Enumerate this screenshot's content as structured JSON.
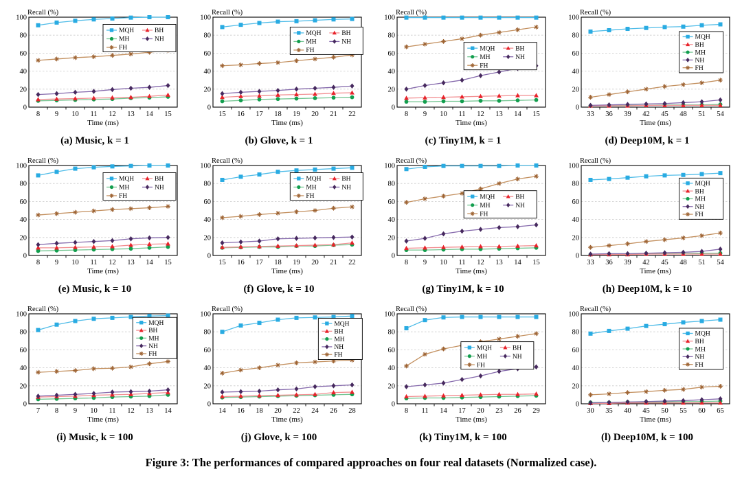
{
  "figure": {
    "caption": "Figure 3: The performances of compared approaches on four real datasets (Normalized case)."
  },
  "methods": [
    {
      "name": "MQH",
      "color": "#29abe2",
      "line": "#4fbce8",
      "marker": "square"
    },
    {
      "name": "BH",
      "color": "#e8232b",
      "line": "#f28e91",
      "marker": "triangle"
    },
    {
      "name": "MH",
      "color": "#129e4e",
      "line": "#74c592",
      "marker": "circle"
    },
    {
      "name": "NH",
      "color": "#46295e",
      "line": "#8468ab",
      "marker": "diamond"
    },
    {
      "name": "FH",
      "color": "#9e6434",
      "line": "#c3905f",
      "marker": "asterisk"
    }
  ],
  "chart_data": [
    {
      "id": "a",
      "caption": "(a) Music, k = 1",
      "type": "line",
      "xlabel": "Time (ms)",
      "ylabel": "Recall (%)",
      "x": [
        8,
        9,
        10,
        11,
        12,
        13,
        14,
        15
      ],
      "ylim": [
        0,
        100
      ],
      "yticks": [
        0,
        20,
        40,
        60,
        80,
        100
      ],
      "legend": {
        "cols": 2,
        "x": 0.5,
        "y": 0.08
      },
      "series": [
        {
          "name": "MQH",
          "values": [
            91,
            94,
            96,
            97.5,
            98.5,
            99.5,
            100,
            100
          ]
        },
        {
          "name": "BH",
          "values": [
            8.5,
            9,
            9.5,
            10,
            10.5,
            11,
            12,
            13.5
          ]
        },
        {
          "name": "MH",
          "values": [
            7,
            7.5,
            8,
            8.5,
            9,
            10,
            10.5,
            11.5
          ]
        },
        {
          "name": "NH",
          "values": [
            14,
            15,
            16.5,
            17.5,
            19.5,
            21,
            22,
            24
          ]
        },
        {
          "name": "FH",
          "values": [
            52,
            53.5,
            55,
            56,
            57.5,
            59,
            61,
            63
          ]
        }
      ]
    },
    {
      "id": "b",
      "caption": "(b) Glove, k = 1",
      "type": "line",
      "xlabel": "Time (ms)",
      "ylabel": "Recall (%)",
      "x": [
        15,
        16,
        17,
        18,
        19,
        20,
        21,
        22
      ],
      "ylim": [
        0,
        100
      ],
      "yticks": [
        0,
        20,
        40,
        60,
        80,
        100
      ],
      "legend": {
        "cols": 2,
        "x": 0.52,
        "y": 0.11
      },
      "series": [
        {
          "name": "MQH",
          "values": [
            89,
            91.5,
            93.5,
            95,
            95.5,
            96.5,
            97.5,
            98
          ]
        },
        {
          "name": "BH",
          "values": [
            11,
            12,
            12.5,
            13.5,
            14,
            14.5,
            15.5,
            16
          ]
        },
        {
          "name": "MH",
          "values": [
            6.5,
            7.5,
            8.5,
            9,
            9.5,
            10,
            10.5,
            11
          ]
        },
        {
          "name": "NH",
          "values": [
            15,
            16.5,
            17.5,
            18.5,
            20,
            21,
            22,
            23.5
          ]
        },
        {
          "name": "FH",
          "values": [
            46,
            47,
            48.5,
            49.5,
            51.5,
            53.5,
            55.5,
            58
          ]
        }
      ]
    },
    {
      "id": "c",
      "caption": "(c) Tiny1M, k = 1",
      "type": "line",
      "xlabel": "Time (ms)",
      "ylabel": "Recall (%)",
      "x": [
        8,
        9,
        10,
        11,
        12,
        13,
        14,
        15
      ],
      "ylim": [
        0,
        100
      ],
      "yticks": [
        0,
        20,
        40,
        60,
        80,
        100
      ],
      "legend": {
        "cols": 2,
        "x": 0.45,
        "y": 0.28
      },
      "series": [
        {
          "name": "MQH",
          "values": [
            99.5,
            99.5,
            99.5,
            99.5,
            99.5,
            99.5,
            99.5,
            99.5
          ]
        },
        {
          "name": "BH",
          "values": [
            10,
            10.5,
            11,
            11.5,
            12,
            12.5,
            13,
            13
          ]
        },
        {
          "name": "MH",
          "values": [
            6,
            6,
            6.5,
            6.5,
            7,
            7,
            7.5,
            8
          ]
        },
        {
          "name": "NH",
          "values": [
            20,
            24,
            27,
            30,
            35,
            39,
            43,
            46
          ]
        },
        {
          "name": "FH",
          "values": [
            67,
            70,
            73,
            76,
            80,
            83,
            86,
            89
          ]
        }
      ]
    },
    {
      "id": "d",
      "caption": "(d) Deep10M, k = 1",
      "type": "line",
      "xlabel": "Time (ms)",
      "ylabel": "Recall (%)",
      "x": [
        33,
        36,
        39,
        42,
        45,
        48,
        51,
        54
      ],
      "ylim": [
        0,
        100
      ],
      "yticks": [
        0,
        20,
        40,
        60,
        80,
        100
      ],
      "legend": {
        "cols": 1,
        "x": 0.66,
        "y": 0.16
      },
      "series": [
        {
          "name": "MQH",
          "values": [
            84,
            85.5,
            87,
            88,
            89,
            89.5,
            91,
            92
          ]
        },
        {
          "name": "BH",
          "values": [
            1.5,
            1.5,
            1.5,
            2,
            2,
            2,
            2,
            2
          ]
        },
        {
          "name": "MH",
          "values": [
            1.5,
            2,
            2,
            2,
            2.5,
            2.5,
            2.5,
            3
          ]
        },
        {
          "name": "NH",
          "values": [
            2,
            2.5,
            3,
            3.5,
            4,
            5,
            6,
            8
          ]
        },
        {
          "name": "FH",
          "values": [
            11,
            14,
            17,
            20,
            23,
            25,
            27,
            30
          ]
        }
      ]
    },
    {
      "id": "e",
      "caption": "(e) Music, k = 10",
      "type": "line",
      "xlabel": "Time (ms)",
      "ylabel": "Recall (%)",
      "x": [
        8,
        9,
        10,
        11,
        12,
        13,
        14,
        15
      ],
      "ylim": [
        0,
        100
      ],
      "yticks": [
        0,
        20,
        40,
        60,
        80,
        100
      ],
      "legend": {
        "cols": 2,
        "x": 0.5,
        "y": 0.08
      },
      "series": [
        {
          "name": "MQH",
          "values": [
            89,
            93,
            96.5,
            98,
            99,
            99.5,
            100,
            100
          ]
        },
        {
          "name": "BH",
          "values": [
            8.5,
            8.5,
            9,
            9.5,
            10,
            11.5,
            12.5,
            13
          ]
        },
        {
          "name": "MH",
          "values": [
            5,
            5.5,
            6,
            6.5,
            7,
            7.5,
            8.5,
            9.5
          ]
        },
        {
          "name": "NH",
          "values": [
            12,
            13.5,
            14.5,
            15.5,
            16.5,
            18.5,
            19.5,
            20
          ]
        },
        {
          "name": "FH",
          "values": [
            45,
            46.5,
            48,
            49.5,
            51,
            52,
            53,
            54.5
          ]
        }
      ]
    },
    {
      "id": "f",
      "caption": "(f) Glove, k = 10",
      "type": "line",
      "xlabel": "Time (ms)",
      "ylabel": "Recall (%)",
      "x": [
        15,
        16,
        17,
        18,
        19,
        20,
        21,
        22
      ],
      "ylim": [
        0,
        100
      ],
      "yticks": [
        0,
        20,
        40,
        60,
        80,
        100
      ],
      "legend": {
        "cols": 2,
        "x": 0.52,
        "y": 0.08
      },
      "series": [
        {
          "name": "MQH",
          "values": [
            84,
            87.5,
            90,
            93,
            94.5,
            95.5,
            96.5,
            97.5
          ]
        },
        {
          "name": "BH",
          "values": [
            9,
            9.5,
            10,
            10.5,
            11,
            11.5,
            12,
            14
          ]
        },
        {
          "name": "MH",
          "values": [
            8.5,
            9,
            9.5,
            9.5,
            10.5,
            10.5,
            11.5,
            12
          ]
        },
        {
          "name": "NH",
          "values": [
            14,
            15,
            16,
            18.5,
            19,
            19.5,
            20,
            20.5
          ]
        },
        {
          "name": "FH",
          "values": [
            42,
            43.5,
            45.5,
            47,
            48.5,
            50,
            52.5,
            54
          ]
        }
      ]
    },
    {
      "id": "g",
      "caption": "(g) Tiny1M, k = 10",
      "type": "line",
      "xlabel": "Time (ms)",
      "ylabel": "Recall (%)",
      "x": [
        8,
        9,
        10,
        11,
        12,
        13,
        14,
        15
      ],
      "ylim": [
        0,
        100
      ],
      "yticks": [
        0,
        20,
        40,
        60,
        80,
        100
      ],
      "legend": {
        "cols": 2,
        "x": 0.45,
        "y": 0.28
      },
      "series": [
        {
          "name": "MQH",
          "values": [
            96,
            98.5,
            99.5,
            99.5,
            99.5,
            99.5,
            100,
            100
          ]
        },
        {
          "name": "BH",
          "values": [
            8,
            8.5,
            9,
            9.5,
            10,
            10,
            10.5,
            11
          ]
        },
        {
          "name": "MH",
          "values": [
            6,
            6,
            6.5,
            7,
            7,
            7.5,
            8,
            8.5
          ]
        },
        {
          "name": "NH",
          "values": [
            16,
            19,
            24,
            27,
            29,
            31,
            32,
            34
          ]
        },
        {
          "name": "FH",
          "values": [
            59,
            63,
            66,
            69,
            74,
            80,
            85,
            88
          ]
        }
      ]
    },
    {
      "id": "h",
      "caption": "(h) Deep10M, k = 10",
      "type": "line",
      "xlabel": "Time (ms)",
      "ylabel": "Recall (%)",
      "x": [
        33,
        36,
        39,
        42,
        45,
        48,
        51,
        54
      ],
      "ylim": [
        0,
        100
      ],
      "yticks": [
        0,
        20,
        40,
        60,
        80,
        100
      ],
      "legend": {
        "cols": 1,
        "x": 0.66,
        "y": 0.14
      },
      "series": [
        {
          "name": "MQH",
          "values": [
            84,
            85,
            86.5,
            88,
            89,
            89.5,
            90.5,
            91.5
          ]
        },
        {
          "name": "BH",
          "values": [
            1,
            1,
            1,
            1.5,
            1.5,
            1.5,
            1.5,
            1.5
          ]
        },
        {
          "name": "MH",
          "values": [
            1,
            1.5,
            1.5,
            2,
            2,
            2,
            2.5,
            2.5
          ]
        },
        {
          "name": "NH",
          "values": [
            1.5,
            2,
            2,
            2.5,
            3,
            3.5,
            4.5,
            7
          ]
        },
        {
          "name": "FH",
          "values": [
            9,
            11,
            13,
            15.5,
            17.5,
            19.5,
            22,
            25
          ]
        }
      ]
    },
    {
      "id": "i",
      "caption": "(i) Music, k = 100",
      "type": "line",
      "xlabel": "Time (ms)",
      "ylabel": "Recall (%)",
      "x": [
        7,
        8,
        9,
        10,
        11,
        12,
        13,
        14
      ],
      "ylim": [
        0,
        100
      ],
      "yticks": [
        0,
        20,
        40,
        60,
        80,
        100
      ],
      "legend": {
        "cols": 1,
        "x": 0.7,
        "y": 0.04
      },
      "series": [
        {
          "name": "MQH",
          "values": [
            82,
            88,
            92,
            94.5,
            95.5,
            96.5,
            97.5,
            98
          ]
        },
        {
          "name": "BH",
          "values": [
            7.5,
            8,
            8.5,
            9.5,
            10,
            10.5,
            11.5,
            12.5
          ]
        },
        {
          "name": "MH",
          "values": [
            5,
            5.5,
            6,
            6.5,
            7.5,
            8,
            8.5,
            10
          ]
        },
        {
          "name": "NH",
          "values": [
            8.5,
            9.5,
            10.5,
            11.5,
            13,
            13.5,
            14,
            15.5
          ]
        },
        {
          "name": "FH",
          "values": [
            35,
            36,
            37,
            39,
            39.5,
            41,
            44.5,
            47
          ]
        }
      ]
    },
    {
      "id": "j",
      "caption": "(j) Glove, k = 100",
      "type": "line",
      "xlabel": "Time (ms)",
      "ylabel": "Recall (%)",
      "x": [
        14,
        16,
        18,
        20,
        22,
        24,
        26,
        28
      ],
      "ylim": [
        0,
        100
      ],
      "yticks": [
        0,
        20,
        40,
        60,
        80,
        100
      ],
      "legend": {
        "cols": 1,
        "x": 0.71,
        "y": 0.05
      },
      "series": [
        {
          "name": "MQH",
          "values": [
            80,
            87,
            90,
            93.5,
            95.5,
            96,
            96.5,
            97.5
          ]
        },
        {
          "name": "BH",
          "values": [
            8,
            8.5,
            9,
            9.5,
            10,
            10.5,
            12.5,
            13
          ]
        },
        {
          "name": "MH",
          "values": [
            7,
            7.5,
            8,
            8.5,
            9,
            9.5,
            10,
            10.5
          ]
        },
        {
          "name": "NH",
          "values": [
            13,
            13.5,
            14,
            15.5,
            16.5,
            19,
            20,
            21
          ]
        },
        {
          "name": "FH",
          "values": [
            34,
            37.5,
            40,
            43,
            45.5,
            46.5,
            47.5,
            48.5
          ]
        }
      ]
    },
    {
      "id": "k",
      "caption": "(k) Tiny1M, k = 100",
      "type": "line",
      "xlabel": "Time (ms)",
      "ylabel": "Recall (%)",
      "x": [
        8,
        11,
        14,
        17,
        20,
        23,
        26,
        29
      ],
      "ylim": [
        0,
        100
      ],
      "yticks": [
        0,
        20,
        40,
        60,
        80,
        100
      ],
      "legend": {
        "cols": 2,
        "x": 0.43,
        "y": 0.31
      },
      "series": [
        {
          "name": "MQH",
          "values": [
            84,
            93,
            96,
            96.5,
            96.5,
            96.5,
            96.5,
            96.5
          ]
        },
        {
          "name": "BH",
          "values": [
            8,
            8.5,
            9,
            9.5,
            10,
            10.5,
            10.5,
            11
          ]
        },
        {
          "name": "MH",
          "values": [
            6,
            6.5,
            6.5,
            7,
            7.5,
            8,
            8.5,
            9
          ]
        },
        {
          "name": "NH",
          "values": [
            19,
            21,
            23,
            27,
            31,
            36,
            39,
            41
          ]
        },
        {
          "name": "FH",
          "values": [
            42,
            55,
            61,
            65,
            69,
            72,
            75,
            78
          ]
        }
      ]
    },
    {
      "id": "l",
      "caption": "(l) Deep10M, k = 100",
      "type": "line",
      "xlabel": "Time (ms)",
      "ylabel": "Recall (%)",
      "x": [
        30,
        35,
        40,
        45,
        50,
        55,
        60,
        65
      ],
      "ylim": [
        0,
        100
      ],
      "yticks": [
        0,
        20,
        40,
        60,
        80,
        100
      ],
      "legend": {
        "cols": 1,
        "x": 0.66,
        "y": 0.16
      },
      "series": [
        {
          "name": "MQH",
          "values": [
            78,
            81,
            83.5,
            86.5,
            88.5,
            90.5,
            92,
            93.5
          ]
        },
        {
          "name": "BH",
          "values": [
            0.5,
            0.5,
            1,
            1,
            1,
            1,
            1,
            1
          ]
        },
        {
          "name": "MH",
          "values": [
            1.5,
            1.5,
            2,
            2,
            2,
            2.5,
            2.5,
            3
          ]
        },
        {
          "name": "NH",
          "values": [
            1,
            1.5,
            2,
            2.5,
            3,
            3.5,
            4.5,
            5.5
          ]
        },
        {
          "name": "FH",
          "values": [
            10,
            11,
            12.5,
            13.5,
            15,
            16,
            18.5,
            19.5
          ]
        }
      ]
    }
  ]
}
